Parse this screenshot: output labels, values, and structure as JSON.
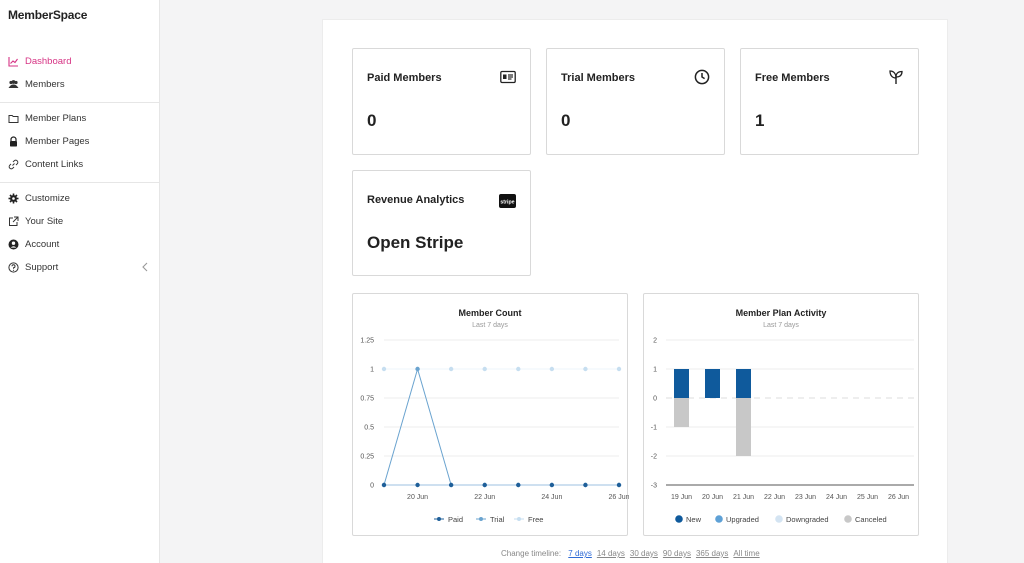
{
  "app": {
    "logo": "MemberSpace"
  },
  "sidebar": {
    "items": [
      {
        "label": "Dashboard",
        "icon": "chart-line-icon",
        "active": true
      },
      {
        "label": "Members",
        "icon": "users-icon"
      },
      {
        "label": "Member Plans",
        "icon": "folder-icon"
      },
      {
        "label": "Member Pages",
        "icon": "lock-icon"
      },
      {
        "label": "Content Links",
        "icon": "link-icon"
      },
      {
        "label": "Customize",
        "icon": "gear-icon"
      },
      {
        "label": "Your Site",
        "icon": "external-link-icon"
      },
      {
        "label": "Account",
        "icon": "user-circle-icon"
      },
      {
        "label": "Support",
        "icon": "question-circle-icon"
      }
    ]
  },
  "cards": {
    "paid": {
      "title": "Paid Members",
      "value": "0",
      "icon": "id-card-icon"
    },
    "trial": {
      "title": "Trial Members",
      "value": "0",
      "icon": "clock-icon"
    },
    "free": {
      "title": "Free Members",
      "value": "1",
      "icon": "sprout-icon"
    },
    "revenue": {
      "title": "Revenue Analytics",
      "value": "Open Stripe",
      "icon": "stripe-icon",
      "badge": "stripe"
    }
  },
  "member_count": {
    "title": "Member Count",
    "subtitle": "Last 7 days"
  },
  "plan_activity": {
    "title": "Member Plan Activity",
    "subtitle": "Last 7 days"
  },
  "timeline": {
    "label": "Change timeline:",
    "options": [
      "7 days",
      "14 days",
      "30 days",
      "90 days",
      "365 days",
      "All time"
    ],
    "selected": "7 days"
  },
  "colors": {
    "accent": "#d63384",
    "paid": "#1f5f99",
    "trial": "#6aa3cf",
    "free": "#c6def0",
    "new": "#0f5a9c",
    "upgraded": "#5ea1d6",
    "downgraded": "#d4e4f2",
    "canceled": "#c8c8c8"
  },
  "chart_data": [
    {
      "type": "line",
      "title": "Member Count",
      "subtitle": "Last 7 days",
      "x": [
        "20 Jun",
        "21 Jun",
        "22 Jun",
        "23 Jun",
        "24 Jun",
        "25 Jun",
        "26 Jun",
        "19 Jun"
      ],
      "x_order": [
        "19 Jun",
        "20 Jun",
        "21 Jun",
        "22 Jun",
        "23 Jun",
        "24 Jun",
        "25 Jun",
        "26 Jun"
      ],
      "x_tick_labels": [
        "20 Jun",
        "22 Jun",
        "24 Jun",
        "26 Jun"
      ],
      "ylim": [
        0,
        1.25
      ],
      "y_ticks": [
        "0",
        "0.25",
        "0.5",
        "0.75",
        "1",
        "1.25"
      ],
      "series": [
        {
          "name": "Paid",
          "values": [
            0,
            0,
            0,
            0,
            0,
            0,
            0,
            0
          ]
        },
        {
          "name": "Trial",
          "values": [
            0,
            1,
            0,
            0,
            0,
            0,
            0,
            0
          ]
        },
        {
          "name": "Free",
          "values": [
            1,
            1,
            1,
            1,
            1,
            1,
            1,
            1
          ]
        }
      ],
      "legend": "bottom"
    },
    {
      "type": "bar",
      "title": "Member Plan Activity",
      "subtitle": "Last 7 days",
      "categories": [
        "19 Jun",
        "20 Jun",
        "21 Jun",
        "22 Jun",
        "23 Jun",
        "24 Jun",
        "25 Jun",
        "26 Jun"
      ],
      "ylim": [
        -3,
        2
      ],
      "y_ticks": [
        "-3",
        "-2",
        "-1",
        "0",
        "1",
        "2"
      ],
      "series": [
        {
          "name": "New",
          "values": [
            1,
            1,
            1,
            0,
            0,
            0,
            0,
            0
          ]
        },
        {
          "name": "Upgraded",
          "values": [
            0,
            0,
            0,
            0,
            0,
            0,
            0,
            0
          ]
        },
        {
          "name": "Downgraded",
          "values": [
            0,
            0,
            0,
            0,
            0,
            0,
            0,
            0
          ]
        },
        {
          "name": "Canceled",
          "values": [
            -1,
            0,
            -2,
            0,
            0,
            0,
            0,
            0
          ]
        }
      ],
      "legend": "bottom"
    }
  ]
}
